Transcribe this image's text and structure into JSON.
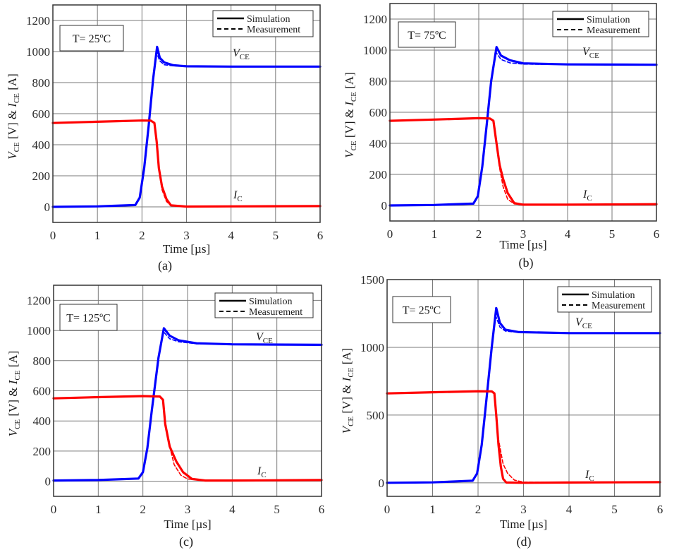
{
  "chart_data": [
    {
      "panel": "a",
      "type": "line",
      "caption": "(a)",
      "annotation": "T= 25ºC",
      "xlabel": "Time [µs]",
      "ylabel": "V_CE [V] & I_CE [A]",
      "xlim": [
        0,
        6
      ],
      "ylim": [
        -100,
        1300
      ],
      "xticks": [
        0,
        1,
        2,
        3,
        4,
        5,
        6
      ],
      "yticks": [
        0,
        200,
        400,
        600,
        800,
        1000,
        1200
      ],
      "grid": true,
      "legend": {
        "position": "top-right",
        "entries": [
          "Simulation",
          "Measurement"
        ]
      },
      "curve_labels": {
        "vce": "V_CE",
        "ic": "I_C"
      },
      "series": [
        {
          "name": "V_CE Simulation",
          "color": "#0000ff",
          "style": "solid",
          "x": [
            0,
            1,
            1.85,
            1.95,
            2.05,
            2.15,
            2.25,
            2.34,
            2.4,
            2.5,
            2.7,
            3.0,
            4.0,
            6.0
          ],
          "y": [
            0,
            3,
            12,
            60,
            250,
            520,
            820,
            1030,
            960,
            930,
            912,
            905,
            903,
            903
          ]
        },
        {
          "name": "V_CE Measurement",
          "color": "#0000ff",
          "style": "dashed",
          "x": [
            0,
            1,
            1.85,
            1.95,
            2.05,
            2.15,
            2.25,
            2.32,
            2.4,
            2.5,
            2.7,
            3.0,
            4.0,
            6.0
          ],
          "y": [
            0,
            3,
            12,
            60,
            250,
            520,
            820,
            1000,
            940,
            915,
            908,
            905,
            903,
            903
          ]
        },
        {
          "name": "I_C Simulation",
          "color": "#ff0000",
          "style": "solid",
          "x": [
            0,
            1,
            2.0,
            2.2,
            2.28,
            2.33,
            2.38,
            2.45,
            2.55,
            2.65,
            3.0,
            4.0,
            6.0
          ],
          "y": [
            540,
            548,
            556,
            555,
            540,
            420,
            250,
            130,
            50,
            10,
            2,
            3,
            5
          ]
        },
        {
          "name": "I_C Measurement",
          "color": "#ff0000",
          "style": "dashed",
          "x": [
            0,
            1,
            2.0,
            2.2,
            2.28,
            2.33,
            2.38,
            2.45,
            2.55,
            2.65,
            3.0,
            4.0,
            6.0
          ],
          "y": [
            540,
            548,
            556,
            555,
            540,
            420,
            240,
            110,
            35,
            8,
            2,
            3,
            5
          ]
        }
      ]
    },
    {
      "panel": "b",
      "type": "line",
      "caption": "(b)",
      "annotation": "T= 75ºC",
      "xlabel": "Time [µs]",
      "ylabel": "V_CE [V] & I_CE [A]",
      "xlim": [
        0,
        6
      ],
      "ylim": [
        -100,
        1300
      ],
      "xticks": [
        0,
        1,
        2,
        3,
        4,
        5,
        6
      ],
      "yticks": [
        0,
        200,
        400,
        600,
        800,
        1000,
        1200
      ],
      "grid": true,
      "legend": {
        "position": "top-right",
        "entries": [
          "Simulation",
          "Measurement"
        ]
      },
      "curve_labels": {
        "vce": "V_CE",
        "ic": "I_C"
      },
      "series": [
        {
          "name": "V_CE Simulation",
          "color": "#0000ff",
          "style": "solid",
          "x": [
            0,
            1,
            1.88,
            1.98,
            2.08,
            2.18,
            2.28,
            2.4,
            2.5,
            2.7,
            3.0,
            4.0,
            6.0
          ],
          "y": [
            0,
            3,
            12,
            60,
            250,
            520,
            800,
            1020,
            965,
            935,
            915,
            908,
            906
          ]
        },
        {
          "name": "V_CE Measurement",
          "color": "#0000ff",
          "style": "dashed",
          "x": [
            0,
            1,
            1.88,
            1.98,
            2.08,
            2.18,
            2.28,
            2.38,
            2.5,
            2.7,
            3.0,
            4.0,
            6.0
          ],
          "y": [
            0,
            3,
            12,
            60,
            250,
            520,
            800,
            990,
            940,
            918,
            910,
            908,
            906
          ]
        },
        {
          "name": "I_C Simulation",
          "color": "#ff0000",
          "style": "solid",
          "x": [
            0,
            1,
            2.0,
            2.25,
            2.33,
            2.4,
            2.47,
            2.55,
            2.65,
            2.8,
            3.0,
            4.0,
            6.0
          ],
          "y": [
            545,
            553,
            562,
            560,
            545,
            400,
            260,
            170,
            80,
            15,
            5,
            5,
            8
          ]
        },
        {
          "name": "I_C Measurement",
          "color": "#ff0000",
          "style": "dashed",
          "x": [
            0,
            1,
            2.0,
            2.25,
            2.33,
            2.4,
            2.47,
            2.55,
            2.65,
            2.8,
            3.0,
            4.0,
            6.0
          ],
          "y": [
            545,
            553,
            562,
            560,
            545,
            400,
            240,
            120,
            40,
            10,
            5,
            5,
            8
          ]
        }
      ]
    },
    {
      "panel": "c",
      "type": "line",
      "caption": "(c)",
      "annotation": "T= 125ºC",
      "xlabel": "Time [µs]",
      "ylabel": "V_CE [V] & I_CE [A]",
      "xlim": [
        0,
        6
      ],
      "ylim": [
        -100,
        1300
      ],
      "xticks": [
        0,
        1,
        2,
        3,
        4,
        5,
        6
      ],
      "yticks": [
        0,
        200,
        400,
        600,
        800,
        1000,
        1200
      ],
      "grid": true,
      "legend": {
        "position": "top-right",
        "entries": [
          "Simulation",
          "Measurement"
        ]
      },
      "curve_labels": {
        "vce": "V_CE",
        "ic": "I_C"
      },
      "series": [
        {
          "name": "V_CE Simulation",
          "color": "#0000ff",
          "style": "solid",
          "x": [
            0,
            1,
            1.9,
            2.0,
            2.1,
            2.2,
            2.35,
            2.47,
            2.6,
            2.8,
            3.2,
            4.0,
            6.0
          ],
          "y": [
            5,
            8,
            18,
            60,
            220,
            470,
            820,
            1015,
            965,
            935,
            915,
            908,
            905
          ]
        },
        {
          "name": "V_CE Measurement",
          "color": "#0000ff",
          "style": "dashed",
          "x": [
            0,
            1,
            1.9,
            2.0,
            2.1,
            2.2,
            2.35,
            2.45,
            2.6,
            2.8,
            3.2,
            4.0,
            6.0
          ],
          "y": [
            5,
            8,
            18,
            60,
            220,
            470,
            820,
            995,
            945,
            925,
            912,
            908,
            905
          ]
        },
        {
          "name": "I_C Simulation",
          "color": "#ff0000",
          "style": "solid",
          "x": [
            0,
            1,
            2.0,
            2.38,
            2.45,
            2.5,
            2.6,
            2.75,
            2.9,
            3.1,
            3.4,
            4.0,
            6.0
          ],
          "y": [
            550,
            558,
            565,
            562,
            540,
            380,
            230,
            130,
            60,
            15,
            5,
            5,
            8
          ]
        },
        {
          "name": "I_C Measurement",
          "color": "#ff0000",
          "style": "dashed",
          "x": [
            0,
            1,
            2.0,
            2.38,
            2.45,
            2.5,
            2.6,
            2.7,
            2.85,
            3.0,
            3.4,
            4.0,
            6.0
          ],
          "y": [
            550,
            558,
            565,
            562,
            540,
            400,
            230,
            110,
            40,
            15,
            5,
            5,
            8
          ]
        }
      ]
    },
    {
      "panel": "d",
      "type": "line",
      "caption": "(d)",
      "annotation": "T= 25ºC",
      "xlabel": "Time [µs]",
      "ylabel": "V_CE [V] & I_CE [A]",
      "xlim": [
        0,
        6
      ],
      "ylim": [
        -100,
        1500
      ],
      "xticks": [
        0,
        1,
        2,
        3,
        4,
        5,
        6
      ],
      "yticks": [
        0,
        500,
        1000,
        1500
      ],
      "grid": true,
      "legend": {
        "position": "top-right",
        "entries": [
          "Simulation",
          "Measurement"
        ]
      },
      "curve_labels": {
        "vce": "V_CE",
        "ic": "I_C"
      },
      "series": [
        {
          "name": "V_CE Simulation",
          "color": "#0000ff",
          "style": "solid",
          "x": [
            0,
            1,
            1.88,
            1.98,
            2.08,
            2.18,
            2.3,
            2.4,
            2.48,
            2.6,
            2.9,
            4.0,
            6.0
          ],
          "y": [
            0,
            3,
            15,
            70,
            280,
            600,
            1000,
            1290,
            1180,
            1130,
            1112,
            1105,
            1105
          ]
        },
        {
          "name": "V_CE Measurement",
          "color": "#0000ff",
          "style": "dashed",
          "x": [
            0,
            1,
            1.88,
            1.98,
            2.08,
            2.18,
            2.3,
            2.38,
            2.48,
            2.6,
            2.9,
            4.0,
            6.0
          ],
          "y": [
            0,
            3,
            15,
            70,
            280,
            600,
            1000,
            1240,
            1150,
            1120,
            1110,
            1105,
            1105
          ]
        },
        {
          "name": "I_C Simulation",
          "color": "#ff0000",
          "style": "solid",
          "x": [
            0,
            1,
            2.0,
            2.3,
            2.36,
            2.4,
            2.45,
            2.5,
            2.55,
            2.62,
            3.0,
            4.0,
            6.0
          ],
          "y": [
            660,
            668,
            676,
            675,
            660,
            500,
            280,
            120,
            30,
            2,
            0,
            2,
            5
          ]
        },
        {
          "name": "I_C Measurement",
          "color": "#ff0000",
          "style": "dashed",
          "x": [
            0,
            1,
            2.0,
            2.3,
            2.36,
            2.4,
            2.45,
            2.55,
            2.65,
            2.8,
            3.0,
            4.0,
            6.0
          ],
          "y": [
            660,
            668,
            676,
            675,
            660,
            500,
            320,
            140,
            70,
            20,
            5,
            2,
            5
          ]
        }
      ]
    }
  ]
}
